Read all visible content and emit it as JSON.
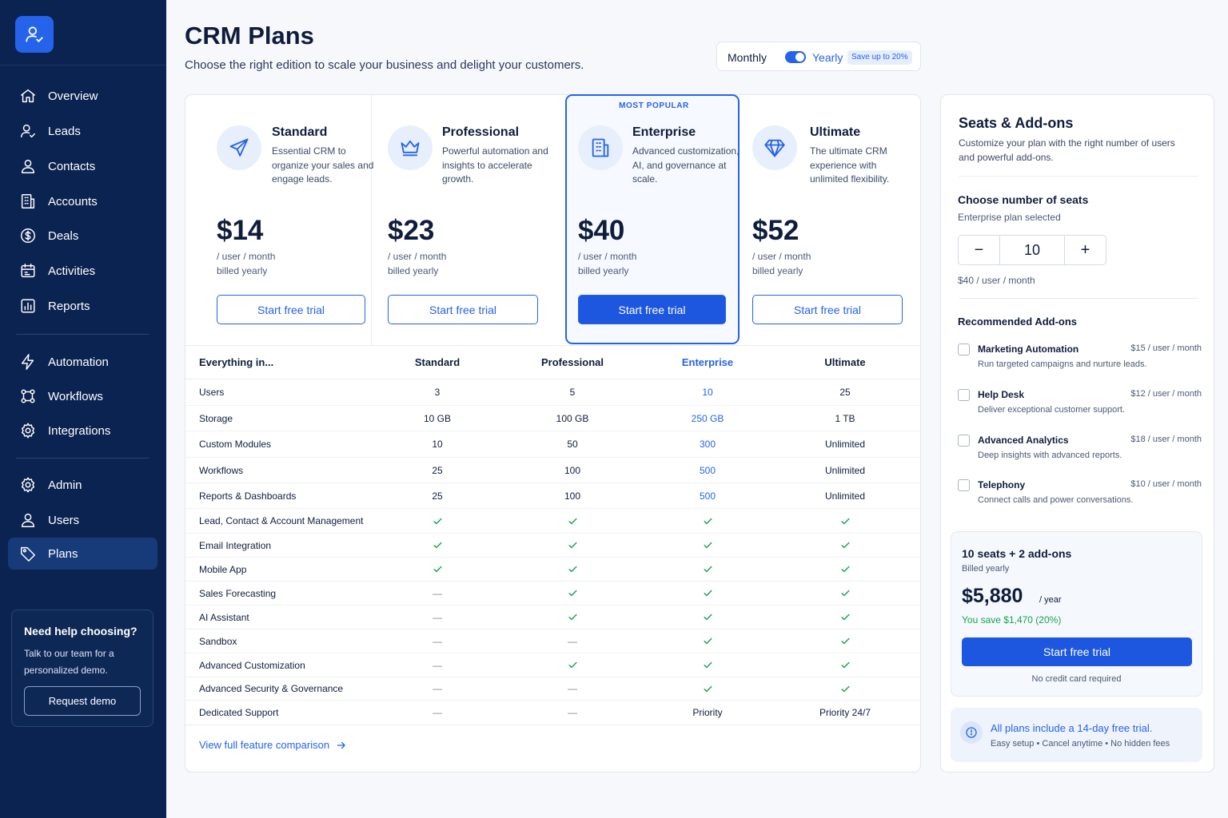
{
  "sidebar": {
    "nav_main": [
      {
        "label": "Overview",
        "icon": "home-icon"
      },
      {
        "label": "Leads",
        "icon": "user-plus-icon"
      },
      {
        "label": "Contacts",
        "icon": "user-icon"
      },
      {
        "label": "Accounts",
        "icon": "building-icon"
      },
      {
        "label": "Deals",
        "icon": "dollar-icon"
      },
      {
        "label": "Activities",
        "icon": "calendar-icon"
      },
      {
        "label": "Reports",
        "icon": "bar-chart-icon"
      }
    ],
    "nav_automation": [
      {
        "label": "Automation",
        "icon": "bolt-icon"
      },
      {
        "label": "Workflows",
        "icon": "workflow-icon"
      },
      {
        "label": "Integrations",
        "icon": "gear-icon"
      }
    ],
    "nav_admin": [
      {
        "label": "Admin",
        "icon": "gear-icon"
      },
      {
        "label": "Users",
        "icon": "user-icon"
      },
      {
        "label": "Plans",
        "icon": "tag-icon",
        "active": true
      }
    ],
    "help": {
      "title": "Need help choosing?",
      "text": "Talk to our team for a personalized demo.",
      "button": "Request demo"
    }
  },
  "header": {
    "title": "CRM Plans",
    "subtitle": "Choose the right edition to scale your business and delight your customers.",
    "billing": {
      "monthly": "Monthly",
      "yearly": "Yearly",
      "badge": "Save up to 20%",
      "selected": "Yearly"
    }
  },
  "plans": [
    {
      "name": "Standard",
      "desc": "Essential CRM to organize your sales and engage leads.",
      "price": "$14",
      "unit": "/ user / month",
      "billed": "billed yearly",
      "cta": "Start free trial",
      "icon": "paper-plane-icon"
    },
    {
      "name": "Professional",
      "desc": "Powerful automation and insights to accelerate growth.",
      "price": "$23",
      "unit": "/ user / month",
      "billed": "billed yearly",
      "cta": "Start free trial",
      "icon": "crown-icon"
    },
    {
      "name": "Enterprise",
      "desc": "Advanced customization, AI, and governance at scale.",
      "price": "$40",
      "unit": "/ user / month",
      "billed": "billed yearly",
      "cta": "Start free trial",
      "icon": "building-icon",
      "badge": "MOST POPULAR"
    },
    {
      "name": "Ultimate",
      "desc": "The ultimate CRM experience with unlimited flexibility.",
      "price": "$52",
      "unit": "/ user / month",
      "billed": "billed yearly",
      "cta": "Start free trial",
      "icon": "diamond-icon"
    }
  ],
  "comparison": {
    "headers": [
      "Everything in...",
      "Standard",
      "Professional",
      "Enterprise",
      "Ultimate"
    ],
    "rows": [
      [
        "Users",
        "3",
        "5",
        "10",
        "25"
      ],
      [
        "Storage",
        "10 GB",
        "100 GB",
        "250 GB",
        "1 TB"
      ],
      [
        "Custom Modules",
        "10",
        "50",
        "300",
        "Unlimited"
      ],
      [
        "Workflows",
        "25",
        "100",
        "500",
        "Unlimited"
      ],
      [
        "Reports & Dashboards",
        "25",
        "100",
        "500",
        "Unlimited"
      ],
      [
        "Lead, Contact & Account Management",
        "check",
        "check",
        "check",
        "check"
      ],
      [
        "Email Integration",
        "check",
        "check",
        "check",
        "check"
      ],
      [
        "Mobile App",
        "check",
        "check",
        "check",
        "check"
      ],
      [
        "Sales Forecasting",
        "—",
        "check",
        "check",
        "check"
      ],
      [
        "AI Assistant",
        "—",
        "check",
        "check",
        "check"
      ],
      [
        "Sandbox",
        "—",
        "—",
        "check",
        "check"
      ],
      [
        "Advanced Customization",
        "—",
        "check",
        "check",
        "check"
      ],
      [
        "Advanced Security & Governance",
        "—",
        "—",
        "check",
        "check"
      ],
      [
        "Dedicated Support",
        "—",
        "—",
        "Priority",
        "Priority 24/7"
      ]
    ],
    "link": "View full feature comparison"
  },
  "seats": {
    "title": "Seats & Add-ons",
    "subtitle": "Customize your plan with the right number of users and powerful add-ons.",
    "choose_title": "Choose number of seats",
    "plan_selected": "Enterprise plan selected",
    "count": "10",
    "minus": "−",
    "plus": "+",
    "per_seat": "$40 / user / month",
    "addons_title": "Recommended Add-ons",
    "addons": [
      {
        "name": "Marketing Automation",
        "price": "$15 / user / month",
        "desc": "Run targeted campaigns and nurture leads."
      },
      {
        "name": "Help Desk",
        "price": "$12 / user / month",
        "desc": "Deliver exceptional customer support."
      },
      {
        "name": "Advanced Analytics",
        "price": "$18 / user / month",
        "desc": "Deep insights with advanced reports."
      },
      {
        "name": "Telephony",
        "price": "$10 / user / month",
        "desc": "Connect calls and power conversations."
      }
    ]
  },
  "summary": {
    "title": "10 seats  +  2 add-ons",
    "billed": "Billed yearly",
    "price": "$5,880",
    "per": "/ year",
    "save": "You save $1,470 (20%)",
    "cta": "Start free trial",
    "note": "No credit card required"
  },
  "trial": {
    "title": "All plans include a 14-day free trial.",
    "sub": "Easy setup  •  Cancel anytime  •  No hidden fees"
  },
  "colors": {
    "sidebar": "#0b2350",
    "accent": "#2563eb",
    "success": "#16a34a"
  }
}
